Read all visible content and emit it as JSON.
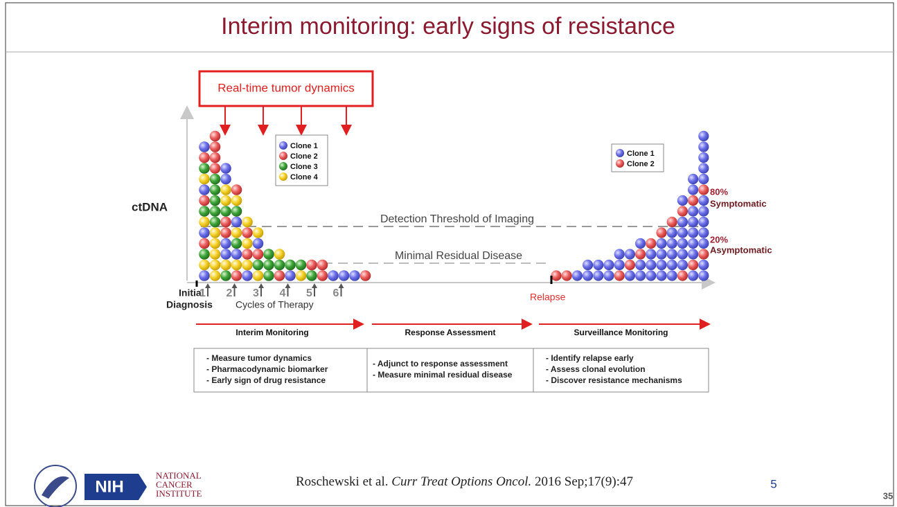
{
  "header": {
    "title": "Interim monitoring: early signs of resistance"
  },
  "diagram": {
    "callout": "Real-time tumor dynamics",
    "y_label": "ctDNA",
    "thresholds": [
      "Detection Threshold of Imaging",
      "Minimal Residual Disease"
    ],
    "legend_left": [
      "Clone 1",
      "Clone 2",
      "Clone 3",
      "Clone 4"
    ],
    "legend_right": [
      "Clone 1",
      "Clone 2"
    ],
    "annotations": [
      {
        "percent": "80%",
        "label": "Symptomatic"
      },
      {
        "percent": "20%",
        "label": "Asymptomatic"
      }
    ],
    "x_start": [
      "Initial",
      "Diagnosis"
    ],
    "cycles": [
      "1",
      "2",
      "3",
      "4",
      "5",
      "6"
    ],
    "x_label": "Cycles of Therapy",
    "relapse": "Relapse"
  },
  "phases": [
    {
      "title": "Interim Monitoring",
      "items": [
        "- Measure tumor dynamics",
        "- Pharmacodynamic biomarker",
        "- Early sign of drug resistance"
      ]
    },
    {
      "title": "Response Assessment",
      "items": [
        "- Adjunct to response assessment",
        "- Measure minimal residual disease"
      ]
    },
    {
      "title": "Surveillance Monitoring",
      "items": [
        "- Identify relapse early",
        "- Assess clonal evolution",
        "- Discover resistance mechanisms"
      ]
    }
  ],
  "footer": {
    "citation_authors": "Roschewski et al.",
    "citation_journal": "Curr Treat Options Oncol.",
    "citation_rest": "2016 Sep;17(9):47",
    "logo_nih": "NIH",
    "logo_nci": [
      "NATIONAL",
      "CANCER",
      "INSTITUTE"
    ],
    "page_inner": "5",
    "slide_number": "35"
  }
}
